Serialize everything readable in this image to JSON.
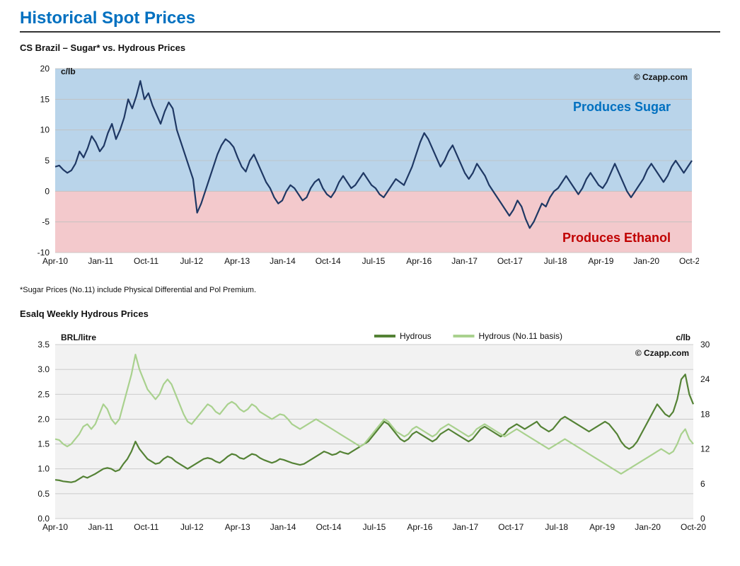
{
  "page_title": "Historical Spot Prices",
  "copyright": "© Czapp.com",
  "footnote": "*Sugar Prices (No.11) include Physical Differential and Pol Premium.",
  "x_ticks": [
    "Apr-10",
    "Jan-11",
    "Oct-11",
    "Jul-12",
    "Apr-13",
    "Jan-14",
    "Oct-14",
    "Jul-15",
    "Apr-16",
    "Jan-17",
    "Oct-17",
    "Jul-18",
    "Apr-19",
    "Jan-20",
    "Oct-20"
  ],
  "chart1": {
    "title": "CS Brazil – Sugar* vs. Hydrous Prices",
    "type": "line",
    "unit_left": "c/lb",
    "ylim": [
      -10,
      20
    ],
    "yticks": [
      -10,
      -5,
      0,
      5,
      10,
      15,
      20
    ],
    "zero_split": 0,
    "zone_top": {
      "label": "Produces Sugar",
      "color": "#b9d4ea",
      "text_color": "#0070c0"
    },
    "zone_bottom": {
      "label": "Produces Ethanol",
      "color": "#f3c9cc",
      "text_color": "#c00000"
    },
    "grid_color": "#bfbfbf",
    "line_color": "#1f3864",
    "line_width": 2.2,
    "plot_bg": "#f2f2f2",
    "title_fontsize": 13,
    "zone_label_fontsize": 18,
    "data": [
      4,
      4.2,
      3.5,
      3,
      3.4,
      4.5,
      6.5,
      5.5,
      7,
      9,
      8,
      6.5,
      7.4,
      9.5,
      11,
      8.5,
      10,
      12,
      15,
      13.5,
      15.5,
      18,
      15,
      16,
      14,
      12.5,
      11,
      13,
      14.5,
      13.5,
      10,
      8,
      6,
      4,
      2,
      -3.5,
      -2,
      0,
      2,
      4,
      6,
      7.5,
      8.5,
      8,
      7.2,
      5.5,
      4,
      3.2,
      5,
      6,
      4.5,
      3,
      1.5,
      0.5,
      -1,
      -2,
      -1.5,
      0,
      1,
      0.5,
      -0.5,
      -1.5,
      -1,
      0.5,
      1.5,
      2,
      0.5,
      -0.5,
      -1,
      0,
      1.5,
      2.5,
      1.5,
      0.5,
      1,
      2,
      3,
      2,
      1,
      0.5,
      -0.5,
      -1,
      0,
      1,
      2,
      1.5,
      1,
      2.5,
      4,
      6,
      8,
      9.5,
      8.5,
      7,
      5.5,
      4,
      5,
      6.5,
      7.5,
      6,
      4.5,
      3,
      2,
      3,
      4.5,
      3.5,
      2.5,
      1,
      0,
      -1,
      -2,
      -3,
      -4,
      -3,
      -1.5,
      -2.5,
      -4.5,
      -6,
      -5,
      -3.5,
      -2,
      -2.5,
      -1,
      0,
      0.5,
      1.5,
      2.5,
      1.5,
      0.5,
      -0.5,
      0.5,
      2,
      3,
      2,
      1,
      0.5,
      1.5,
      3,
      4.5,
      3,
      1.5,
      0,
      -1,
      0,
      1,
      2,
      3.5,
      4.5,
      3.5,
      2.5,
      1.5,
      2.5,
      4,
      5,
      4,
      3,
      4,
      5
    ]
  },
  "chart2": {
    "title": "Esalq Weekly Hydrous Prices",
    "type": "line-dual-axis",
    "unit_left": "BRL/litre",
    "unit_right": "c/lb",
    "ylim_left": [
      0,
      3.5
    ],
    "yticks_left": [
      0.0,
      0.5,
      1.0,
      1.5,
      2.0,
      2.5,
      3.0,
      3.5
    ],
    "ylim_right": [
      0,
      30
    ],
    "yticks_right": [
      0,
      6,
      12,
      18,
      24,
      30
    ],
    "grid_color": "#bfbfbf",
    "plot_bg": "#f2f2f2",
    "title_fontsize": 13,
    "legend": [
      {
        "label": "Hydrous",
        "color": "#548235",
        "width": 2.5
      },
      {
        "label": "Hydrous (No.11 basis)",
        "color": "#a9d18e",
        "width": 2.5
      }
    ],
    "series": {
      "hydrous": {
        "color": "#548235",
        "width": 2.2,
        "axis": "left",
        "data": [
          0.78,
          0.77,
          0.75,
          0.74,
          0.73,
          0.75,
          0.8,
          0.85,
          0.82,
          0.86,
          0.9,
          0.95,
          1.0,
          1.02,
          1.0,
          0.95,
          0.98,
          1.1,
          1.2,
          1.35,
          1.55,
          1.4,
          1.3,
          1.2,
          1.15,
          1.1,
          1.12,
          1.2,
          1.25,
          1.22,
          1.15,
          1.1,
          1.05,
          1.0,
          1.05,
          1.1,
          1.15,
          1.2,
          1.22,
          1.2,
          1.15,
          1.12,
          1.18,
          1.25,
          1.3,
          1.28,
          1.22,
          1.2,
          1.25,
          1.3,
          1.28,
          1.22,
          1.18,
          1.15,
          1.12,
          1.15,
          1.2,
          1.18,
          1.15,
          1.12,
          1.1,
          1.08,
          1.1,
          1.15,
          1.2,
          1.25,
          1.3,
          1.35,
          1.32,
          1.28,
          1.3,
          1.35,
          1.32,
          1.3,
          1.35,
          1.4,
          1.45,
          1.5,
          1.55,
          1.65,
          1.75,
          1.85,
          1.95,
          1.9,
          1.8,
          1.7,
          1.6,
          1.55,
          1.6,
          1.7,
          1.75,
          1.7,
          1.65,
          1.6,
          1.55,
          1.6,
          1.7,
          1.75,
          1.8,
          1.75,
          1.7,
          1.65,
          1.6,
          1.55,
          1.6,
          1.7,
          1.8,
          1.85,
          1.8,
          1.75,
          1.7,
          1.65,
          1.7,
          1.8,
          1.85,
          1.9,
          1.85,
          1.8,
          1.85,
          1.9,
          1.95,
          1.85,
          1.8,
          1.75,
          1.8,
          1.9,
          2.0,
          2.05,
          2.0,
          1.95,
          1.9,
          1.85,
          1.8,
          1.75,
          1.8,
          1.85,
          1.9,
          1.95,
          1.9,
          1.8,
          1.7,
          1.55,
          1.45,
          1.4,
          1.45,
          1.55,
          1.7,
          1.85,
          2.0,
          2.15,
          2.3,
          2.2,
          2.1,
          2.05,
          2.15,
          2.4,
          2.8,
          2.9,
          2.5,
          2.3
        ]
      },
      "hydrous_basis": {
        "color": "#a9d18e",
        "width": 2.2,
        "axis": "left",
        "data": [
          1.6,
          1.58,
          1.5,
          1.45,
          1.5,
          1.6,
          1.7,
          1.85,
          1.9,
          1.8,
          1.9,
          2.1,
          2.3,
          2.2,
          2.0,
          1.9,
          2.0,
          2.3,
          2.6,
          2.9,
          3.3,
          3.0,
          2.8,
          2.6,
          2.5,
          2.4,
          2.5,
          2.7,
          2.8,
          2.7,
          2.5,
          2.3,
          2.1,
          1.95,
          1.9,
          2.0,
          2.1,
          2.2,
          2.3,
          2.25,
          2.15,
          2.1,
          2.2,
          2.3,
          2.35,
          2.3,
          2.2,
          2.15,
          2.2,
          2.3,
          2.25,
          2.15,
          2.1,
          2.05,
          2.0,
          2.05,
          2.1,
          2.08,
          2.0,
          1.9,
          1.85,
          1.8,
          1.85,
          1.9,
          1.95,
          2.0,
          1.95,
          1.9,
          1.85,
          1.8,
          1.75,
          1.7,
          1.65,
          1.6,
          1.55,
          1.5,
          1.45,
          1.5,
          1.6,
          1.7,
          1.8,
          1.9,
          2.0,
          1.95,
          1.85,
          1.75,
          1.7,
          1.65,
          1.7,
          1.8,
          1.85,
          1.8,
          1.75,
          1.7,
          1.65,
          1.7,
          1.8,
          1.85,
          1.9,
          1.85,
          1.8,
          1.75,
          1.7,
          1.65,
          1.7,
          1.8,
          1.85,
          1.9,
          1.85,
          1.8,
          1.75,
          1.7,
          1.65,
          1.7,
          1.75,
          1.8,
          1.75,
          1.7,
          1.65,
          1.6,
          1.55,
          1.5,
          1.45,
          1.4,
          1.45,
          1.5,
          1.55,
          1.6,
          1.55,
          1.5,
          1.45,
          1.4,
          1.35,
          1.3,
          1.25,
          1.2,
          1.15,
          1.1,
          1.05,
          1.0,
          0.95,
          0.9,
          0.95,
          1.0,
          1.05,
          1.1,
          1.15,
          1.2,
          1.25,
          1.3,
          1.35,
          1.4,
          1.35,
          1.3,
          1.35,
          1.5,
          1.7,
          1.8,
          1.6,
          1.5
        ]
      }
    }
  }
}
